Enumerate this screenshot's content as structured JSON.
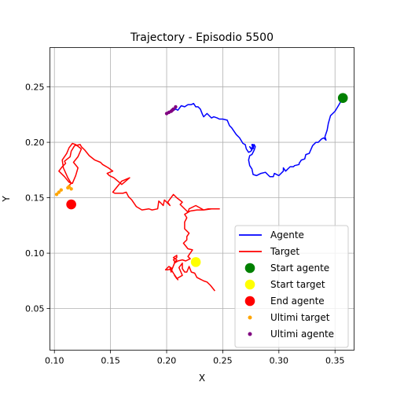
{
  "chart_data": {
    "type": "line",
    "title": "Trajectory - Episodio 5500",
    "xlabel": "X",
    "ylabel": "Y",
    "xlim": [
      0.096,
      0.367
    ],
    "ylim": [
      0.0125,
      0.2855
    ],
    "xticks": [
      0.1,
      0.15,
      0.2,
      0.25,
      0.3,
      0.35
    ],
    "xtick_labels": [
      "0.10",
      "0.15",
      "0.20",
      "0.25",
      "0.30",
      "0.35"
    ],
    "yticks": [
      0.05,
      0.1,
      0.15,
      0.2,
      0.25
    ],
    "ytick_labels": [
      "0.05",
      "0.10",
      "0.15",
      "0.20",
      "0.25"
    ],
    "grid": true,
    "legend_position": "lower-right",
    "colors": {
      "agent": "#0000ff",
      "target": "#ff0000",
      "start_agent": "#008000",
      "start_target": "#ffff00",
      "end_agent": "#ff0000",
      "last_target": "#ffa500",
      "last_agent": "#800080"
    },
    "legend": [
      {
        "label": "Agente",
        "kind": "line",
        "color_key": "agent"
      },
      {
        "label": "Target",
        "kind": "line",
        "color_key": "target"
      },
      {
        "label": "Start agente",
        "kind": "big-dot",
        "color_key": "start_agent"
      },
      {
        "label": "Start target",
        "kind": "big-dot",
        "color_key": "start_target"
      },
      {
        "label": "End agente",
        "kind": "big-dot",
        "color_key": "end_agent"
      },
      {
        "label": "Ultimi target",
        "kind": "small-dot",
        "color_key": "last_target"
      },
      {
        "label": "Ultimi agente",
        "kind": "small-dot",
        "color_key": "last_agent"
      }
    ],
    "series": [
      {
        "name": "Agente",
        "color_key": "agent",
        "x": [
          0.357,
          0.353,
          0.35,
          0.346,
          0.344,
          0.343,
          0.341,
          0.342,
          0.34,
          0.338,
          0.335,
          0.333,
          0.33,
          0.327,
          0.324,
          0.323,
          0.32,
          0.318,
          0.318,
          0.314,
          0.313,
          0.31,
          0.306,
          0.304,
          0.304,
          0.3,
          0.296,
          0.295,
          0.292,
          0.29,
          0.288,
          0.284,
          0.28,
          0.277,
          0.276,
          0.274,
          0.273,
          0.274,
          0.276,
          0.278,
          0.279,
          0.278,
          0.277,
          0.276,
          0.277,
          0.276,
          0.274,
          0.276,
          0.275,
          0.273,
          0.271,
          0.27,
          0.268,
          0.265,
          0.262,
          0.258,
          0.256,
          0.254,
          0.25,
          0.247,
          0.245,
          0.242,
          0.24,
          0.236,
          0.233,
          0.232,
          0.23,
          0.228,
          0.226,
          0.224,
          0.222,
          0.219,
          0.216,
          0.213,
          0.21,
          0.208,
          0.205,
          0.202,
          0.2
        ],
        "y": [
          0.24,
          0.233,
          0.228,
          0.224,
          0.217,
          0.211,
          0.205,
          0.202,
          0.204,
          0.203,
          0.2,
          0.2,
          0.197,
          0.19,
          0.189,
          0.185,
          0.184,
          0.181,
          0.18,
          0.179,
          0.178,
          0.178,
          0.174,
          0.177,
          0.174,
          0.17,
          0.172,
          0.169,
          0.169,
          0.171,
          0.173,
          0.172,
          0.17,
          0.171,
          0.176,
          0.179,
          0.184,
          0.188,
          0.189,
          0.193,
          0.196,
          0.198,
          0.194,
          0.198,
          0.198,
          0.194,
          0.196,
          0.193,
          0.192,
          0.191,
          0.194,
          0.198,
          0.199,
          0.204,
          0.207,
          0.213,
          0.215,
          0.22,
          0.221,
          0.221,
          0.222,
          0.223,
          0.222,
          0.226,
          0.223,
          0.225,
          0.23,
          0.232,
          0.232,
          0.235,
          0.234,
          0.234,
          0.232,
          0.233,
          0.229,
          0.23,
          0.228,
          0.228,
          0.226
        ]
      },
      {
        "name": "Target",
        "color_key": "target",
        "x": [
          0.243,
          0.239,
          0.236,
          0.233,
          0.231,
          0.227,
          0.225,
          0.222,
          0.22,
          0.218,
          0.216,
          0.214,
          0.214,
          0.211,
          0.214,
          0.209,
          0.207,
          0.21,
          0.206,
          0.203,
          0.204,
          0.205,
          0.201,
          0.199,
          0.202,
          0.205,
          0.207,
          0.209,
          0.206,
          0.209,
          0.209,
          0.206,
          0.207,
          0.207,
          0.21,
          0.214,
          0.217,
          0.221,
          0.219,
          0.223,
          0.219,
          0.215,
          0.218,
          0.218,
          0.22,
          0.216,
          0.216,
          0.218,
          0.216,
          0.221,
          0.227,
          0.233,
          0.237,
          0.242,
          0.247,
          0.24,
          0.233,
          0.226,
          0.22,
          0.219,
          0.212,
          0.214,
          0.209,
          0.206,
          0.201,
          0.203,
          0.198,
          0.197,
          0.195,
          0.193,
          0.192,
          0.187,
          0.184,
          0.178,
          0.173,
          0.169,
          0.166,
          0.164,
          0.161,
          0.157,
          0.154,
          0.152,
          0.16,
          0.167,
          0.16,
          0.153,
          0.149,
          0.147,
          0.152,
          0.148,
          0.143,
          0.141,
          0.136,
          0.131,
          0.127,
          0.124,
          0.123,
          0.118,
          0.115,
          0.114,
          0.109,
          0.11,
          0.107,
          0.104,
          0.109,
          0.113,
          0.116,
          0.119,
          0.121,
          0.117,
          0.121,
          0.124,
          0.119,
          0.116,
          0.113,
          0.111,
          0.107,
          0.108,
          0.112,
          0.115,
          0.112
        ],
        "y": [
          0.066,
          0.071,
          0.074,
          0.075,
          0.076,
          0.078,
          0.082,
          0.083,
          0.088,
          0.083,
          0.083,
          0.086,
          0.091,
          0.087,
          0.08,
          0.077,
          0.08,
          0.076,
          0.082,
          0.087,
          0.083,
          0.086,
          0.085,
          0.085,
          0.088,
          0.086,
          0.091,
          0.094,
          0.096,
          0.098,
          0.096,
          0.094,
          0.093,
          0.091,
          0.093,
          0.094,
          0.093,
          0.095,
          0.097,
          0.103,
          0.104,
          0.109,
          0.112,
          0.115,
          0.118,
          0.122,
          0.128,
          0.132,
          0.135,
          0.138,
          0.139,
          0.139,
          0.14,
          0.14,
          0.14,
          0.14,
          0.139,
          0.143,
          0.14,
          0.137,
          0.144,
          0.146,
          0.15,
          0.153,
          0.146,
          0.143,
          0.148,
          0.143,
          0.145,
          0.147,
          0.14,
          0.139,
          0.14,
          0.139,
          0.142,
          0.148,
          0.151,
          0.155,
          0.154,
          0.154,
          0.154,
          0.155,
          0.165,
          0.168,
          0.162,
          0.168,
          0.17,
          0.172,
          0.174,
          0.177,
          0.18,
          0.182,
          0.184,
          0.188,
          0.193,
          0.196,
          0.198,
          0.197,
          0.192,
          0.187,
          0.183,
          0.181,
          0.178,
          0.174,
          0.169,
          0.164,
          0.163,
          0.17,
          0.177,
          0.182,
          0.187,
          0.194,
          0.198,
          0.199,
          0.195,
          0.19,
          0.184,
          0.177,
          0.168,
          0.163,
          0.16
        ]
      }
    ],
    "markers": [
      {
        "name": "Start agente",
        "color_key": "start_agent",
        "size": "large",
        "x": 0.357,
        "y": 0.24
      },
      {
        "name": "Start target",
        "color_key": "start_target",
        "size": "large",
        "x": 0.226,
        "y": 0.092
      },
      {
        "name": "End agente",
        "color_key": "end_agent",
        "size": "large",
        "x": 0.115,
        "y": 0.144
      }
    ],
    "last_points": [
      {
        "name": "Ultimi target",
        "color_key": "last_target",
        "x": [
          0.102,
          0.104,
          0.106,
          0.112,
          0.113,
          0.115
        ],
        "y": [
          0.153,
          0.155,
          0.157,
          0.159,
          0.16,
          0.158
        ]
      },
      {
        "name": "Ultimi agente",
        "color_key": "last_agent",
        "x": [
          0.2,
          0.202,
          0.204,
          0.205,
          0.206,
          0.208
        ],
        "y": [
          0.226,
          0.227,
          0.228,
          0.229,
          0.23,
          0.232
        ]
      }
    ]
  }
}
